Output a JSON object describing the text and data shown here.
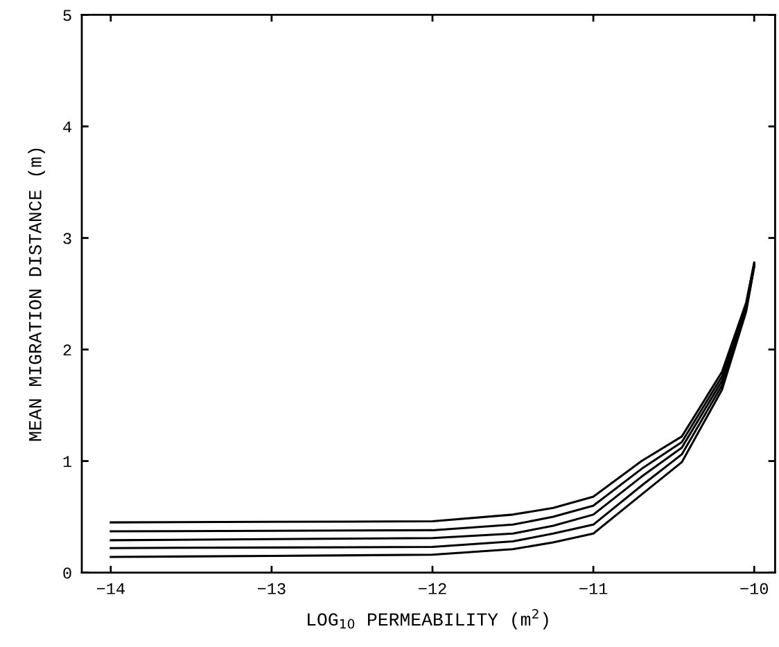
{
  "chart_data": {
    "type": "line",
    "xlabel": "LOG$_{10}$ PERMEABILITY (m$^{2}$)",
    "ylabel": "MEAN MIGRATION DISTANCE (m)",
    "x": [
      -14,
      -13,
      -12,
      -11.5,
      -11.25,
      -11,
      -10.7,
      -10.45,
      -10.2,
      -10.05,
      -10
    ],
    "series": [
      {
        "color": "#000000",
        "values": [
          0.45,
          0.455,
          0.46,
          0.52,
          0.58,
          0.68,
          1.0,
          1.22,
          1.8,
          2.42,
          2.78
        ]
      },
      {
        "color": "#000000",
        "values": [
          0.37,
          0.375,
          0.38,
          0.43,
          0.5,
          0.6,
          0.93,
          1.17,
          1.76,
          2.4,
          2.77
        ]
      },
      {
        "color": "#000000",
        "values": [
          0.29,
          0.3,
          0.31,
          0.35,
          0.42,
          0.52,
          0.86,
          1.12,
          1.72,
          2.38,
          2.76
        ]
      },
      {
        "color": "#000000",
        "values": [
          0.22,
          0.225,
          0.23,
          0.28,
          0.35,
          0.43,
          0.78,
          1.06,
          1.68,
          2.36,
          2.75
        ]
      },
      {
        "color": "#000000",
        "values": [
          0.14,
          0.15,
          0.16,
          0.21,
          0.27,
          0.35,
          0.7,
          0.99,
          1.64,
          2.34,
          2.74
        ]
      }
    ],
    "xlim": [
      -14.18,
      -9.87
    ],
    "xticks": [
      -14,
      -13,
      -12,
      -11,
      -10
    ],
    "ylim": [
      0,
      5
    ],
    "yticks": [
      0,
      1,
      2,
      3,
      4,
      5
    ],
    "grid": false,
    "legend": false,
    "marker": "none",
    "line_style": "solid"
  }
}
